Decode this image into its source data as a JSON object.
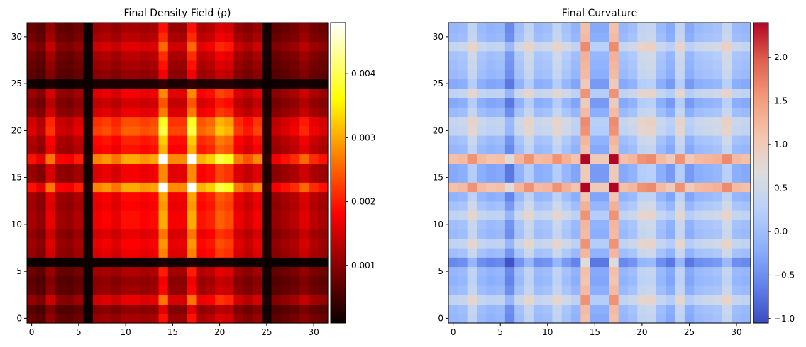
{
  "chart_data": [
    {
      "type": "heatmap",
      "title": "Final Density Field (ρ)",
      "xlabel": "",
      "ylabel": "",
      "xlim": [
        -0.5,
        31.5
      ],
      "ylim": [
        -0.5,
        31.5
      ],
      "grid": false,
      "colormap": "hot",
      "color_range": [
        0.0001,
        0.0048
      ],
      "x_ticks": [
        0,
        5,
        10,
        15,
        20,
        25,
        30
      ],
      "y_ticks": [
        0,
        5,
        10,
        15,
        20,
        25,
        30
      ],
      "colorbar_ticks": [
        {
          "value": 0.001,
          "label": "0.001"
        },
        {
          "value": 0.002,
          "label": "0.002"
        },
        {
          "value": 0.003,
          "label": "0.003"
        },
        {
          "value": 0.004,
          "label": "0.004"
        }
      ],
      "profile": {
        "description_of_values": "separable profile along x and y; value(x,y) ≈ 0.0048 * profile[x] * profile[y]",
        "values": [
          0.4,
          0.34,
          0.55,
          0.38,
          0.36,
          0.42,
          0.05,
          0.57,
          0.6,
          0.55,
          0.63,
          0.63,
          0.6,
          0.62,
          1.0,
          0.58,
          0.58,
          1.0,
          0.64,
          0.68,
          0.82,
          0.78,
          0.56,
          0.5,
          0.58,
          0.08,
          0.36,
          0.4,
          0.44,
          0.53,
          0.44,
          0.4
        ]
      }
    },
    {
      "type": "heatmap",
      "title": "Final Curvature",
      "xlabel": "",
      "ylabel": "",
      "xlim": [
        -0.5,
        31.5
      ],
      "ylim": [
        -0.5,
        31.5
      ],
      "grid": false,
      "colormap": "coolwarm",
      "color_range": [
        -1.05,
        2.4
      ],
      "x_ticks": [
        0,
        5,
        10,
        15,
        20,
        25,
        30
      ],
      "y_ticks": [
        0,
        5,
        10,
        15,
        20,
        25,
        30
      ],
      "colorbar_ticks": [
        {
          "value": -1.0,
          "label": "−1.0"
        },
        {
          "value": -0.5,
          "label": "−0.5"
        },
        {
          "value": 0.0,
          "label": "0.0"
        },
        {
          "value": 0.5,
          "label": "0.5"
        },
        {
          "value": 1.0,
          "label": "1.0"
        },
        {
          "value": 1.5,
          "label": "1.5"
        },
        {
          "value": 2.0,
          "label": "2.0"
        }
      ],
      "profile": {
        "description_of_values": "separable profile along x and y; value(x,y) ≈ profile[x] + profile[y]",
        "values": [
          -0.05,
          0.0,
          0.4,
          0.0,
          -0.1,
          -0.05,
          -0.5,
          0.05,
          0.4,
          0.0,
          0.05,
          0.4,
          0.1,
          -0.1,
          1.2,
          -0.2,
          -0.2,
          1.2,
          -0.05,
          0.05,
          0.4,
          0.45,
          0.0,
          -0.2,
          0.4,
          -0.2,
          0.0,
          0.05,
          0.1,
          0.45,
          0.0,
          -0.05
        ]
      }
    }
  ]
}
